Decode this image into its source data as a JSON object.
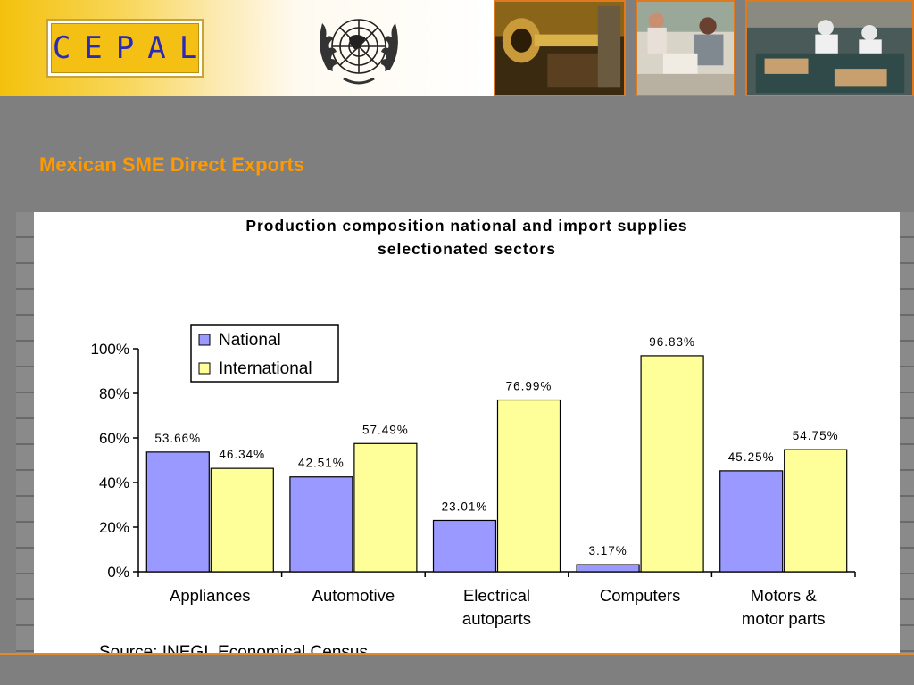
{
  "header": {
    "logo_text": "CEPAL",
    "emblem": "un-emblem",
    "photos": [
      "laboratory-equipment-photo",
      "office-computer-workers-photo",
      "factory-assembly-workers-photo"
    ]
  },
  "slide": {
    "title": "Mexican SME Direct Exports"
  },
  "colors": {
    "title": "#ff9900",
    "national": "#9999ff",
    "international": "#ffff99",
    "background": "#7f7f7f",
    "header_gold": "#f3c10d"
  },
  "chart_data": {
    "type": "bar",
    "title_lines": [
      "Production composition national and import supplies",
      "selectionated sectors"
    ],
    "categories": [
      [
        "Appliances"
      ],
      [
        "Automotive"
      ],
      [
        "Electrical",
        "autoparts"
      ],
      [
        "Computers"
      ],
      [
        "Motors &",
        "motor parts"
      ]
    ],
    "series": [
      {
        "name": "National",
        "values": [
          53.66,
          42.51,
          23.01,
          3.17,
          45.25
        ],
        "color": "#9999ff"
      },
      {
        "name": "International",
        "values": [
          46.34,
          57.49,
          76.99,
          96.83,
          54.75
        ],
        "color": "#ffff99"
      }
    ],
    "data_labels": [
      [
        "53.66%",
        "42.51%",
        "23.01%",
        "3.17%",
        "45.25%"
      ],
      [
        "46.34%",
        "57.49%",
        "76.99%",
        "96.83%",
        "54.75%"
      ]
    ],
    "y_ticks": [
      "0%",
      "20%",
      "40%",
      "60%",
      "80%",
      "100%"
    ],
    "ylim": [
      0,
      100
    ],
    "grid": false,
    "legend": "upper-left",
    "source": "Source: INEGI, Economical Census"
  }
}
